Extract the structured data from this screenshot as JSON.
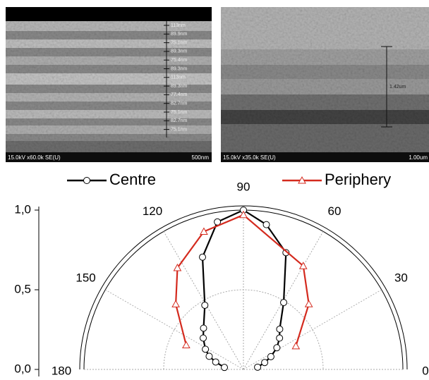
{
  "images": [
    {
      "caption": "15.0kV x60.0k SE(U)",
      "scale": "500nm",
      "labels": [
        "113nm",
        "89.9nm",
        "75.1nm",
        "89.3nm",
        "75.4nm",
        "89.3nm",
        "113nm",
        "89.3nm",
        "77.4nm",
        "82.7nm",
        "75.1nm",
        "82.7nm",
        "75.1nm"
      ]
    },
    {
      "caption": "15.0kV x35.0k SE(U)",
      "scale": "1.00um",
      "labels": [
        "1.42um"
      ]
    }
  ],
  "chart_data": {
    "type": "polar",
    "series": [
      {
        "name": "Centre",
        "color": "#000000",
        "marker": "circle",
        "x": [
          9,
          18,
          25,
          33,
          41,
          48,
          59,
          70,
          81,
          90,
          100,
          110,
          121,
          134,
          142,
          152,
          159,
          165,
          174
        ],
        "values": [
          0.09,
          0.14,
          0.19,
          0.25,
          0.3,
          0.34,
          0.49,
          0.78,
          0.92,
          1.0,
          0.94,
          0.75,
          0.47,
          0.36,
          0.32,
          0.27,
          0.23,
          0.18,
          0.12
        ]
      },
      {
        "name": "Periphery",
        "color": "#d42a1e",
        "marker": "triangle",
        "x": [
          24,
          45,
          60,
          90,
          106,
          123,
          136,
          157
        ],
        "values": [
          0.36,
          0.58,
          0.75,
          0.97,
          0.9,
          0.76,
          0.59,
          0.39
        ]
      }
    ],
    "rlim": [
      0,
      1
    ],
    "rticks": [
      {
        "value": 0,
        "label": "0,0"
      },
      {
        "value": 0.5,
        "label": "0,5"
      },
      {
        "value": 1,
        "label": "1,0"
      }
    ],
    "thetaticks": [
      0,
      30,
      60,
      90,
      120,
      150,
      180
    ],
    "grid": true
  }
}
